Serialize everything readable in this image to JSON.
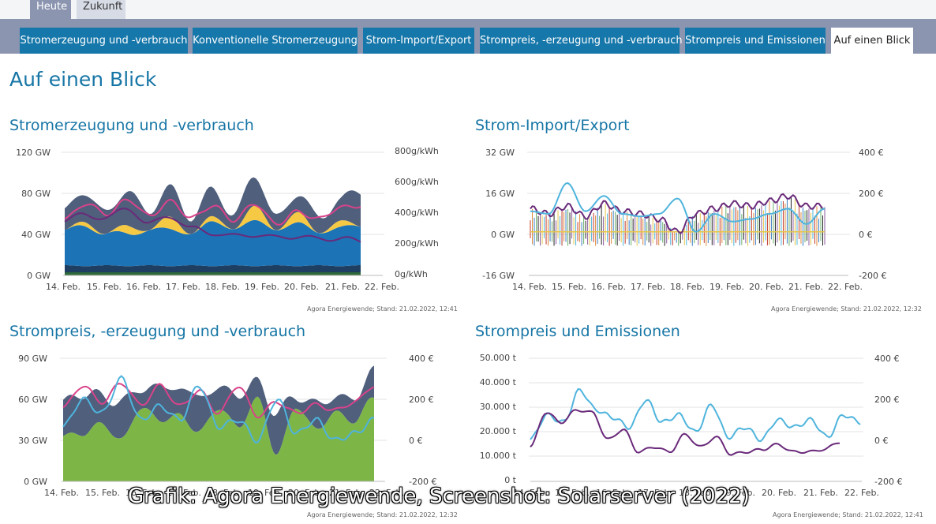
{
  "top_tabs": [
    {
      "label": "Heute",
      "active": true
    },
    {
      "label": "Zukunft",
      "active": false
    }
  ],
  "tabs": [
    {
      "label": "Stromerzeugung und -verbrauch",
      "active": false
    },
    {
      "label": "Konventionelle Stromerzeugung",
      "active": false
    },
    {
      "label": "Strom-Import/Export",
      "active": false
    },
    {
      "label": "Strompreis, -erzeugung und -verbrauch",
      "active": false
    },
    {
      "label": "Strompreis und Emissionen",
      "active": false
    },
    {
      "label": "Auf einen Blick",
      "active": true
    }
  ],
  "page_title": "Auf einen Blick",
  "caption": "Grafik: Agora Energiewende, Screenshot: Solarserver (2022)",
  "colors": {
    "accent": "#1776a6",
    "tab_bg": "#1677aa",
    "tab_bar": "#8b95b0",
    "fossil": "#4f5f7c",
    "solar": "#f6c944",
    "wind": "#1c73b6",
    "renewable_green": "#7db547",
    "price": "#4fb4dd",
    "demand": "#d9438a",
    "co2": "#6a2a7a"
  },
  "x_ticks": [
    "14. Feb.",
    "15. Feb.",
    "16. Feb.",
    "17. Feb.",
    "18. Feb.",
    "19. Feb.",
    "20. Feb.",
    "21. Feb.",
    "22. Feb."
  ],
  "chart_data": [
    {
      "type": "area",
      "title": "Stromerzeugung und -verbrauch",
      "y_left_ticks": [
        "120 GW",
        "80 GW",
        "40 GW",
        "0 GW"
      ],
      "y_right_ticks": [
        "800g/kWh",
        "600g/kWh",
        "400g/kWh",
        "200g/kWh",
        "0g/kWh"
      ],
      "ylim": [
        0,
        120
      ],
      "xlim": [
        0,
        8
      ],
      "source": "Agora Energiewende; Stand: 21.02.2022, 12:41",
      "series": [
        {
          "key": "base",
          "values": [
            10,
            9,
            10,
            9,
            10,
            9,
            10,
            9,
            10,
            9,
            10,
            9,
            10,
            9,
            10
          ]
        },
        {
          "key": "wind",
          "values": [
            34,
            38,
            32,
            30,
            36,
            34,
            33,
            41,
            38,
            42,
            37,
            40,
            34,
            36,
            39
          ]
        },
        {
          "key": "solar",
          "values": [
            0,
            4,
            0,
            8,
            0,
            12,
            0,
            5,
            0,
            14,
            0,
            10,
            0,
            6,
            0
          ]
        },
        {
          "key": "fossil",
          "values": [
            18,
            30,
            20,
            34,
            18,
            28,
            16,
            26,
            14,
            30,
            12,
            18,
            15,
            20,
            35
          ]
        },
        {
          "key": "co2",
          "values": [
            350,
            400,
            370,
            440,
            330,
            390,
            300,
            280,
            250,
            270,
            240,
            260,
            230,
            250,
            210
          ]
        },
        {
          "key": "demand",
          "values": [
            55,
            70,
            60,
            74,
            58,
            72,
            56,
            68,
            54,
            70,
            50,
            62,
            55,
            66,
            68
          ]
        }
      ]
    },
    {
      "type": "line",
      "title": "Strom-Import/Export",
      "y_left_ticks": [
        "32 GW",
        "16 GW",
        "0 GW",
        "-16 GW"
      ],
      "y_right_ticks": [
        "400 €",
        "200 €",
        "0 €",
        "-200 €"
      ],
      "ylim": [
        -16,
        32
      ],
      "xlim": [
        0,
        8
      ],
      "source": "Agora Energiewende; Stand: 21.02.2022, 12:32",
      "series": [
        {
          "key": "price",
          "values": [
            9,
            8,
            20,
            9,
            15,
            8,
            7,
            8,
            14,
            1,
            8,
            5,
            6,
            8,
            10,
            4,
            10
          ]
        },
        {
          "key": "net",
          "values": [
            10,
            8,
            11,
            7,
            12,
            9,
            8,
            6,
            1,
            8,
            10,
            12,
            11,
            13,
            15,
            11,
            11
          ]
        }
      ]
    },
    {
      "type": "area",
      "title": "Strompreis, -erzeugung und -verbrauch",
      "y_left_ticks": [
        "90 GW",
        "60 GW",
        "30 GW",
        "0 GW"
      ],
      "y_right_ticks": [
        "400 €",
        "200 €",
        "0 €",
        "-200 €"
      ],
      "ylim": [
        0,
        90
      ],
      "xlim": [
        0,
        8
      ],
      "source": "Agora Energiewende; Stand: 21.02.2022, 12:32",
      "series": [
        {
          "key": "renewables",
          "values": [
            33,
            35,
            42,
            30,
            54,
            45,
            48,
            36,
            54,
            40,
            60,
            20,
            55,
            38,
            50,
            44,
            62
          ]
        },
        {
          "key": "fossil",
          "values": [
            24,
            30,
            20,
            28,
            14,
            24,
            20,
            26,
            14,
            24,
            12,
            30,
            8,
            18,
            12,
            16,
            22
          ]
        },
        {
          "key": "demand",
          "values": [
            54,
            70,
            58,
            72,
            56,
            70,
            55,
            66,
            50,
            70,
            48,
            58,
            50,
            56,
            52,
            58,
            70
          ]
        },
        {
          "key": "price",
          "values": [
            40,
            60,
            50,
            75,
            45,
            55,
            45,
            70,
            40,
            45,
            30,
            60,
            35,
            45,
            30,
            35,
            45
          ]
        }
      ]
    },
    {
      "type": "line",
      "title": "Strompreis und Emissionen",
      "y_left_ticks": [
        "50.000 t",
        "40.000 t",
        "30.000 t",
        "20.000 t",
        "10.000 t",
        "0 t"
      ],
      "y_right_ticks": [
        "400 €",
        "200 €",
        "0 €",
        "-200 €"
      ],
      "ylim": [
        0,
        50000
      ],
      "xlim": [
        0,
        8
      ],
      "source": "Agora Energiewende; Stand: 21.02.2022, 12:41",
      "series": [
        {
          "key": "price",
          "values": [
            17000,
            27000,
            24000,
            37000,
            29000,
            26000,
            22000,
            33000,
            24000,
            27000,
            20000,
            31000,
            18000,
            22000,
            17000,
            25000,
            22000,
            25000,
            18000,
            27000,
            24000
          ]
        },
        {
          "key": "co2",
          "values": [
            14000,
            28000,
            24000,
            29000,
            28000,
            17000,
            21000,
            12000,
            14000,
            12000,
            19000,
            14000,
            18000,
            11000,
            12000,
            13000,
            15000,
            12000,
            12000,
            13000,
            16000
          ]
        }
      ]
    }
  ]
}
